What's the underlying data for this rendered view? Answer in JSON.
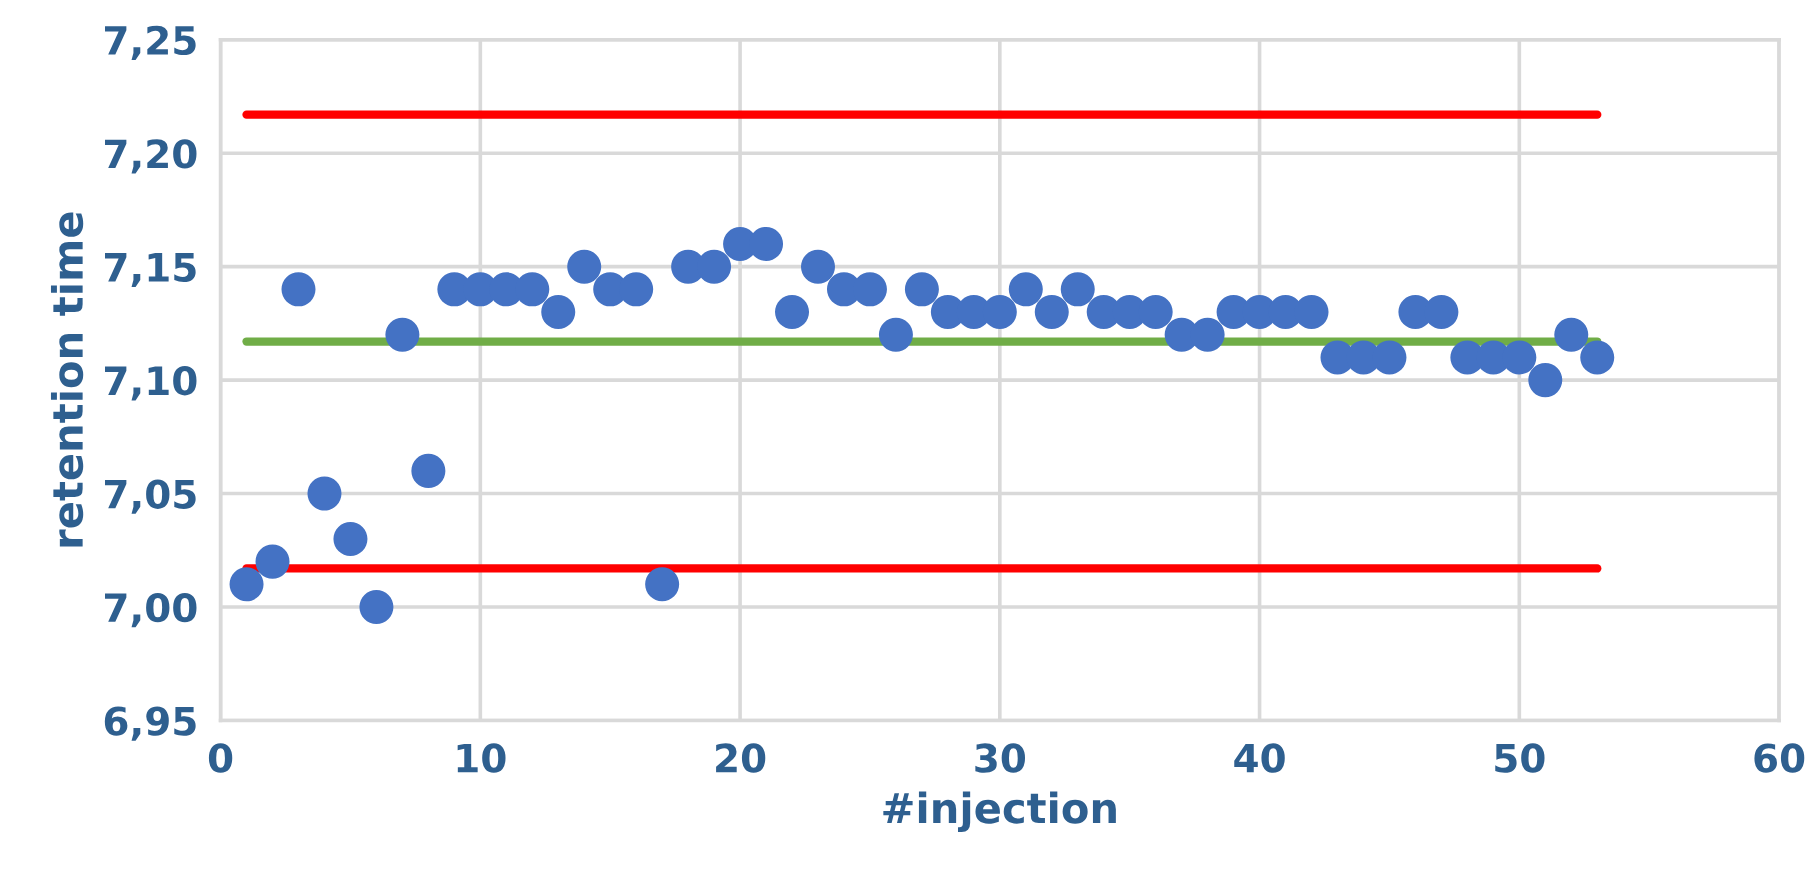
{
  "chart_data": {
    "type": "scatter",
    "xlabel": "#injection",
    "ylabel": "retention time",
    "xlim": [
      0,
      60
    ],
    "xticks": [
      0,
      10,
      20,
      30,
      40,
      50,
      60
    ],
    "ylim": [
      6.95,
      7.25
    ],
    "yticks": [
      {
        "value": 6.95,
        "label": "6,95"
      },
      {
        "value": 7.0,
        "label": "7,00"
      },
      {
        "value": 7.05,
        "label": "7,05"
      },
      {
        "value": 7.1,
        "label": "7,10"
      },
      {
        "value": 7.15,
        "label": "7,15"
      },
      {
        "value": 7.2,
        "label": "7,20"
      },
      {
        "value": 7.25,
        "label": "7,25"
      }
    ],
    "grid": true,
    "series": [
      {
        "marker": "circle",
        "color": "#4472c4",
        "x": [
          1,
          2,
          3,
          4,
          5,
          6,
          7,
          8,
          9,
          10,
          11,
          12,
          13,
          14,
          15,
          16,
          17,
          18,
          19,
          20,
          21,
          22,
          23,
          24,
          25,
          26,
          27,
          28,
          29,
          30,
          31,
          32,
          33,
          34,
          35,
          36,
          37,
          38,
          39,
          40,
          41,
          42,
          43,
          44,
          45,
          46,
          47,
          48,
          49,
          50,
          51,
          52,
          53
        ],
        "values": [
          7.01,
          7.02,
          7.14,
          7.05,
          7.03,
          7.0,
          7.12,
          7.06,
          7.14,
          7.14,
          7.14,
          7.14,
          7.13,
          7.15,
          7.14,
          7.14,
          7.01,
          7.15,
          7.15,
          7.16,
          7.16,
          7.13,
          7.15,
          7.14,
          7.14,
          7.12,
          7.14,
          7.13,
          7.13,
          7.13,
          7.14,
          7.13,
          7.14,
          7.13,
          7.13,
          7.13,
          7.12,
          7.12,
          7.13,
          7.13,
          7.13,
          7.13,
          7.11,
          7.11,
          7.11,
          7.13,
          7.13,
          7.11,
          7.11,
          7.11,
          7.1,
          7.12,
          7.11
        ]
      },
      {
        "type": "line",
        "color": "#ff0000",
        "x": [
          1,
          53
        ],
        "values": [
          7.217,
          7.217
        ]
      },
      {
        "type": "line",
        "color": "#70ad47",
        "x": [
          1,
          53
        ],
        "values": [
          7.117,
          7.117
        ]
      },
      {
        "type": "line",
        "color": "#ff0000",
        "x": [
          1,
          53
        ],
        "values": [
          7.017,
          7.017
        ]
      }
    ]
  }
}
